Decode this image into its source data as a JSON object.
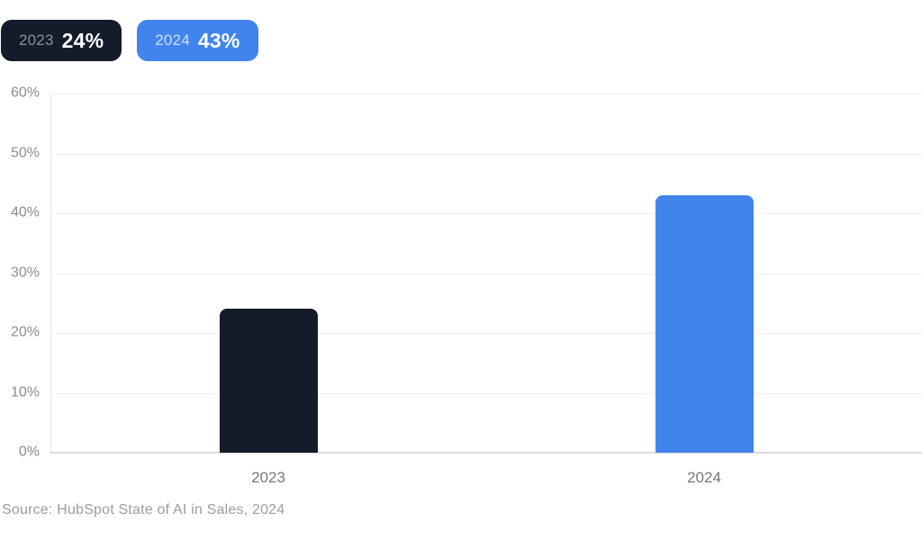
{
  "page": {
    "background": "#ffffff"
  },
  "legend": {
    "items": [
      {
        "year": "2023",
        "value": "24%",
        "bg": "#141b2b",
        "year_color": "#8b90a0",
        "value_color": "#ffffff"
      },
      {
        "year": "2024",
        "value": "43%",
        "bg": "#4184ee",
        "year_color": "#cfe0fa",
        "value_color": "#ffffff"
      }
    ]
  },
  "chart_data": {
    "type": "bar",
    "categories": [
      "2023",
      "2024"
    ],
    "values": [
      24,
      43
    ],
    "values_display": [
      "24%",
      "43%"
    ],
    "series_colors": [
      "#141b2b",
      "#4184ee"
    ],
    "title": "",
    "xlabel": "",
    "ylabel": "",
    "ylim": [
      0,
      60
    ],
    "ytick_step": 10,
    "ytick_suffix": "%",
    "grid": true,
    "gridline_color": "#f0f0f0",
    "baseline_color": "#dcdcdc",
    "legend_position": "top-left"
  },
  "source": {
    "text": "Source: HubSpot State of AI in Sales, 2024"
  }
}
